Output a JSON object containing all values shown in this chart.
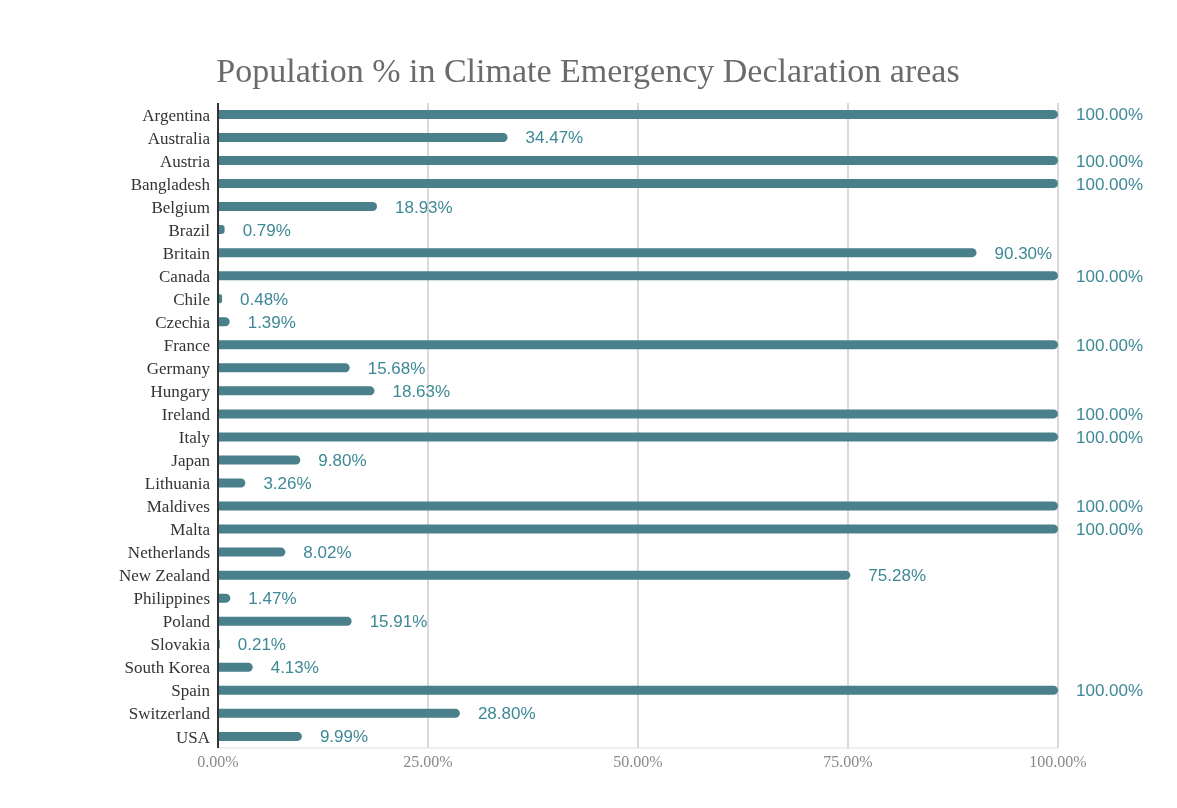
{
  "chart_data": {
    "type": "bar",
    "orientation": "horizontal",
    "title": "Population % in Climate Emergency Declaration areas",
    "categories": [
      "Argentina",
      "Australia",
      "Austria",
      "Bangladesh",
      "Belgium",
      "Brazil",
      "Britain",
      "Canada",
      "Chile",
      "Czechia",
      "France",
      "Germany",
      "Hungary",
      "Ireland",
      "Italy",
      "Japan",
      "Lithuania",
      "Maldives",
      "Malta",
      "Netherlands",
      "New Zealand",
      "Philippines",
      "Poland",
      "Slovakia",
      "South Korea",
      "Spain",
      "Switzerland",
      "USA"
    ],
    "values": [
      100,
      34.47,
      100,
      100,
      18.93,
      0.79,
      90.3,
      100,
      0.48,
      1.39,
      100,
      15.68,
      18.63,
      100,
      100,
      9.8,
      3.26,
      100,
      100,
      8.02,
      75.28,
      1.47,
      15.91,
      0.21,
      4.13,
      100,
      28.8,
      9.99
    ],
    "value_labels": [
      "100.00%",
      "34.47%",
      "100.00%",
      "100.00%",
      "18.93%",
      "0.79%",
      "90.30%",
      "100.00%",
      "0.48%",
      "1.39%",
      "100.00%",
      "15.68%",
      "18.63%",
      "100.00%",
      "100.00%",
      "9.80%",
      "3.26%",
      "100.00%",
      "100.00%",
      "8.02%",
      "75.28%",
      "1.47%",
      "15.91%",
      "0.21%",
      "4.13%",
      "100.00%",
      "28.80%",
      "9.99%"
    ],
    "color": "#4a7f8c",
    "xlim": [
      0,
      100
    ],
    "xticks": [
      {
        "value": 0,
        "label": "0.00%"
      },
      {
        "value": 25,
        "label": "25.00%"
      },
      {
        "value": 50,
        "label": "50.00%"
      },
      {
        "value": 75,
        "label": "75.00%"
      },
      {
        "value": 100,
        "label": "100.00%"
      }
    ],
    "grid": "x"
  }
}
